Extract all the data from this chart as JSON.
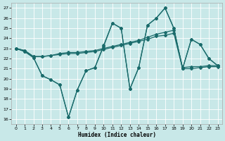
{
  "xlabel": "Humidex (Indice chaleur)",
  "xlim": [
    -0.5,
    23.5
  ],
  "ylim": [
    15.5,
    27.5
  ],
  "xticks": [
    0,
    1,
    2,
    3,
    4,
    5,
    6,
    7,
    8,
    9,
    10,
    11,
    12,
    13,
    14,
    15,
    16,
    17,
    18,
    19,
    20,
    21,
    22,
    23
  ],
  "yticks": [
    16,
    17,
    18,
    19,
    20,
    21,
    22,
    23,
    24,
    25,
    26,
    27
  ],
  "bg_color": "#c8e8e8",
  "line_color": "#1a6b6b",
  "series": [
    {
      "x": [
        0,
        1,
        2,
        3,
        4,
        5,
        6,
        7,
        8,
        9,
        10,
        11,
        12,
        13,
        14,
        15,
        16,
        17,
        18,
        19,
        20,
        21,
        22,
        23
      ],
      "y": [
        23.0,
        22.7,
        22.1,
        20.3,
        19.9,
        19.4,
        16.2,
        18.9,
        20.8,
        21.1,
        23.3,
        25.5,
        25.0,
        19.0,
        21.1,
        25.3,
        26.0,
        27.0,
        25.0,
        21.0,
        23.9,
        23.4,
        22.0,
        21.3
      ]
    },
    {
      "x": [
        0,
        1,
        2,
        3,
        4,
        5,
        6,
        7,
        8,
        9,
        10,
        11,
        12,
        13,
        14,
        15,
        16,
        17,
        18,
        19,
        20,
        21,
        22,
        23
      ],
      "y": [
        23.0,
        22.7,
        22.1,
        20.3,
        19.9,
        19.4,
        16.2,
        18.9,
        20.8,
        21.1,
        23.2,
        25.5,
        25.0,
        19.0,
        21.1,
        25.3,
        26.0,
        27.0,
        25.0,
        21.0,
        23.9,
        23.4,
        22.0,
        21.3
      ]
    },
    {
      "x": [
        0,
        1,
        2,
        3,
        4,
        5,
        6,
        7,
        8,
        9,
        10,
        11,
        12,
        13,
        14,
        15,
        16,
        17,
        18,
        19,
        20,
        21,
        22,
        23
      ],
      "y": [
        23.0,
        22.8,
        22.2,
        22.2,
        22.3,
        22.5,
        22.6,
        22.6,
        22.7,
        22.8,
        23.0,
        23.2,
        23.4,
        23.6,
        23.8,
        24.1,
        24.4,
        24.6,
        24.8,
        21.1,
        21.2,
        21.2,
        21.3,
        21.3
      ]
    },
    {
      "x": [
        0,
        1,
        2,
        3,
        4,
        5,
        6,
        7,
        8,
        9,
        10,
        11,
        12,
        13,
        14,
        15,
        16,
        17,
        18,
        19,
        20,
        21,
        22,
        23
      ],
      "y": [
        23.0,
        22.8,
        22.2,
        22.2,
        22.3,
        22.4,
        22.5,
        22.5,
        22.6,
        22.7,
        22.9,
        23.1,
        23.3,
        23.5,
        23.7,
        23.9,
        24.2,
        24.3,
        24.5,
        21.0,
        21.0,
        21.1,
        21.2,
        21.2
      ]
    }
  ]
}
